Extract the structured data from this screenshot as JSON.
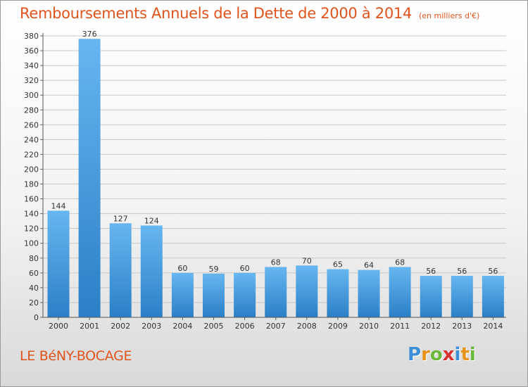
{
  "title": "Remboursements Annuels de la Dette de 2000 à 2014",
  "unit": "(en milliers d'€)",
  "commune": "LE BéNY-BOCAGE",
  "logo": {
    "letters": [
      "P",
      "r",
      "o",
      "x",
      "i",
      "t",
      "i"
    ],
    "colors": [
      "#3c8fd6",
      "#e8941a",
      "#6cb83a",
      "#d83030",
      "#3c8fd6",
      "#e8941a",
      "#6cb83a"
    ]
  },
  "chart_data": {
    "type": "bar",
    "categories": [
      "2000",
      "2001",
      "2002",
      "2003",
      "2004",
      "2005",
      "2006",
      "2007",
      "2008",
      "2009",
      "2010",
      "2011",
      "2012",
      "2013",
      "2014"
    ],
    "values": [
      144,
      376,
      127,
      124,
      60,
      59,
      60,
      68,
      70,
      65,
      64,
      68,
      56,
      56,
      56
    ],
    "ylim": [
      0,
      380
    ],
    "yticks": [
      0,
      20,
      40,
      60,
      80,
      100,
      120,
      140,
      160,
      180,
      200,
      220,
      240,
      260,
      280,
      300,
      320,
      340,
      360,
      380
    ],
    "grid": true,
    "bar_color": "#4a9fe0"
  }
}
